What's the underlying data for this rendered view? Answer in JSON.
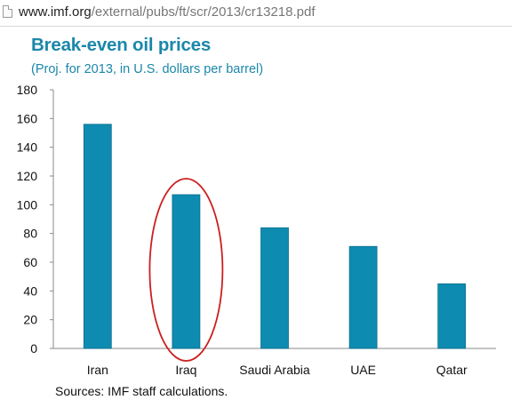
{
  "browser": {
    "url_domain": "www.imf.org",
    "url_path": "/external/pubs/ft/scr/2013/cr13218.pdf",
    "page_icon": "document-icon"
  },
  "chart_data": {
    "type": "bar",
    "title": "Break-even oil prices",
    "subtitle": "(Proj. for 2013, in U.S. dollars per barrel)",
    "xlabel": "",
    "ylabel": "",
    "categories": [
      "Iran",
      "Iraq",
      "Saudi Arabia",
      "UAE",
      "Qatar"
    ],
    "values": [
      156,
      107,
      84,
      71,
      45
    ],
    "ylim": [
      0,
      180
    ],
    "yticks": [
      0,
      20,
      40,
      60,
      80,
      100,
      120,
      140,
      160,
      180
    ],
    "grid": false,
    "legend": "none",
    "bar_color": "#0e8bb0",
    "highlight": {
      "category": "Iraq",
      "shape": "ellipse",
      "color": "#cc1f1f"
    },
    "source": "Sources: IMF staff calculations."
  }
}
